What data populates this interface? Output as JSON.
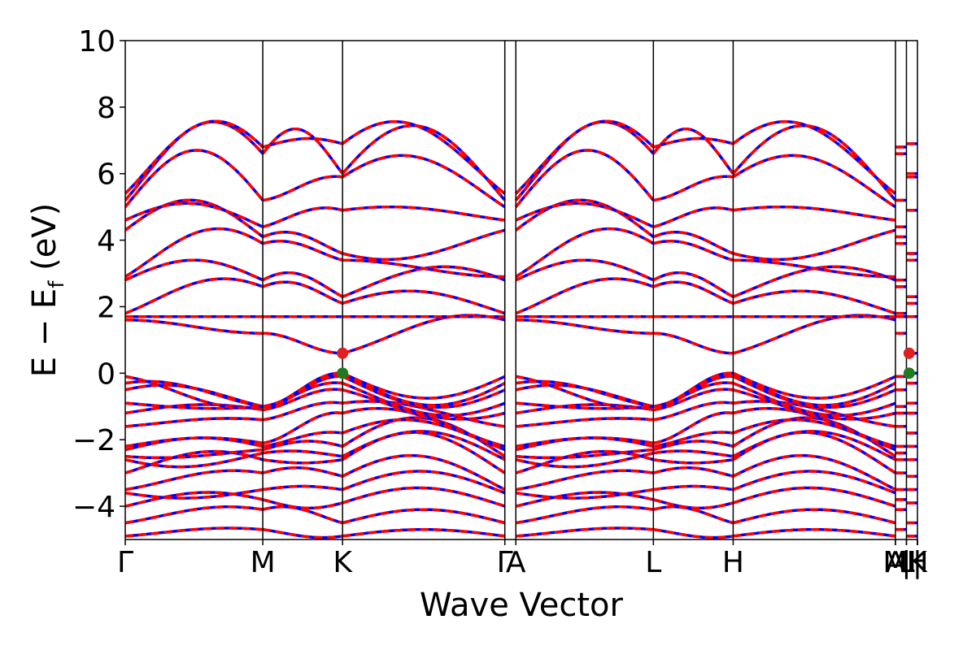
{
  "chart_data": {
    "type": "line",
    "xlabel": "Wave Vector",
    "ylabel": "E − E",
    "ylabel_sub": "f",
    "ylabel_unit": " (eV)",
    "ylim": [
      -5,
      10
    ],
    "yticks": [
      -4,
      -2,
      0,
      2,
      4,
      6,
      8,
      10
    ],
    "ytick_labels": [
      "−4",
      "−2",
      "0",
      "2",
      "4",
      "6",
      "8",
      "10"
    ],
    "xlim": [
      0,
      5.76
    ],
    "kpoints": [
      {
        "label": "Γ",
        "x": 0.0
      },
      {
        "label": "M",
        "x": 1.0
      },
      {
        "label": "K",
        "x": 1.58
      },
      {
        "label": "Γ",
        "x": 2.76
      },
      {
        "label": "A",
        "x": 2.84
      },
      {
        "label": "L",
        "x": 3.84
      },
      {
        "label": "H",
        "x": 4.42
      },
      {
        "label": "A",
        "x": 5.6
      },
      {
        "label": "M",
        "x": 5.6
      },
      {
        "label": "|",
        "x": 5.68
      },
      {
        "label": "L",
        "x": 5.68
      },
      {
        "label": "H",
        "x": 5.76
      },
      {
        "label": "|",
        "x": 5.76
      },
      {
        "label": "K",
        "x": 5.76
      }
    ],
    "band_segments": [
      {
        "from": "Γ",
        "to": "M",
        "x0": 0.0,
        "x1": 1.0,
        "start": [
          -4.9,
          -4.5,
          -4.0,
          -3.6,
          -3.5,
          -3.0,
          -2.6,
          -2.5,
          -2.3,
          -2.2,
          -1.6,
          -1.2,
          -0.9,
          -0.5,
          -0.3,
          -0.1,
          1.6,
          1.7,
          1.8,
          2.8,
          2.9,
          4.3,
          4.6,
          5.0,
          5.2,
          5.4
        ],
        "end": [
          -4.7,
          -4.1,
          -3.8,
          -3.5,
          -3.0,
          -2.6,
          -2.4,
          -2.3,
          -2.2,
          -2.1,
          -1.4,
          -1.1,
          -1.0,
          -1.0,
          -1.0,
          -1.0,
          1.2,
          1.7,
          2.6,
          2.8,
          3.9,
          4.1,
          4.4,
          5.2,
          6.6,
          6.8
        ],
        "bump": [
          0.1,
          0.2,
          0.3,
          -0.2,
          0.2,
          0.4,
          -0.3,
          -0.1,
          0.3,
          0.2,
          0.1,
          0.2,
          -0.1,
          0.3,
          0.2,
          -0.2,
          0.0,
          0.0,
          0.5,
          0.6,
          0.8,
          1.0,
          0.6,
          1.6,
          1.5,
          1.3
        ]
      },
      {
        "from": "M",
        "to": "K",
        "x0": 1.0,
        "x1": 1.58,
        "start": [
          -4.7,
          -4.1,
          -3.8,
          -3.5,
          -3.0,
          -2.6,
          -2.4,
          -2.3,
          -2.2,
          -2.1,
          -1.4,
          -1.1,
          -1.0,
          -1.0,
          -1.0,
          -1.0,
          1.2,
          1.7,
          2.6,
          2.8,
          3.9,
          4.1,
          4.4,
          5.2,
          6.6,
          6.8
        ],
        "end": [
          -4.9,
          -4.5,
          -3.9,
          -3.5,
          -3.1,
          -2.6,
          -2.5,
          -2.2,
          -1.8,
          -1.2,
          -0.9,
          -0.5,
          -0.3,
          -0.1,
          0.0,
          0.0,
          0.6,
          1.7,
          2.1,
          2.3,
          3.4,
          3.6,
          4.9,
          5.9,
          6.0,
          6.9
        ],
        "bump": [
          -0.1,
          0.2,
          -0.2,
          0.1,
          0.2,
          -0.1,
          0.1,
          0.2,
          0.1,
          0.1,
          0.1,
          0.1,
          0.1,
          0.05,
          0.05,
          0.0,
          0.0,
          0.0,
          0.3,
          0.4,
          0.2,
          0.3,
          0.2,
          0.1,
          1.0,
          0.2
        ]
      },
      {
        "from": "K",
        "to": "Γ",
        "x0": 1.58,
        "x1": 2.76,
        "start": [
          -4.9,
          -4.5,
          -3.9,
          -3.5,
          -3.1,
          -2.6,
          -2.5,
          -2.2,
          -1.8,
          -1.2,
          -0.9,
          -0.5,
          -0.3,
          -0.1,
          0.0,
          0.0,
          0.6,
          1.7,
          2.1,
          2.3,
          3.4,
          3.6,
          4.9,
          5.9,
          6.0,
          6.9
        ],
        "end": [
          -4.9,
          -4.5,
          -4.0,
          -3.6,
          -3.5,
          -3.0,
          -2.6,
          -2.5,
          -2.3,
          -2.2,
          -1.6,
          -1.2,
          -0.9,
          -0.5,
          -0.3,
          -0.1,
          1.6,
          1.7,
          1.8,
          2.8,
          2.9,
          4.3,
          4.6,
          5.0,
          5.2,
          5.4
        ],
        "bump": [
          0.2,
          0.4,
          0.5,
          0.6,
          0.8,
          1.0,
          0.8,
          1.0,
          0.6,
          0.4,
          0.2,
          -0.4,
          -0.6,
          -0.7,
          -0.8,
          -0.7,
          0.4,
          0.0,
          0.5,
          0.6,
          0.0,
          -0.4,
          0.2,
          1.0,
          1.8,
          1.2
        ]
      },
      {
        "from": "A",
        "to": "L",
        "x0": 2.84,
        "x1": 3.84,
        "start": [
          -4.9,
          -4.5,
          -4.0,
          -3.6,
          -3.5,
          -3.0,
          -2.6,
          -2.5,
          -2.3,
          -2.2,
          -1.6,
          -1.2,
          -0.9,
          -0.5,
          -0.3,
          -0.1,
          1.6,
          1.7,
          1.8,
          2.8,
          2.9,
          4.3,
          4.6,
          5.0,
          5.2,
          5.4
        ],
        "end": [
          -4.7,
          -4.1,
          -3.8,
          -3.5,
          -3.0,
          -2.6,
          -2.4,
          -2.3,
          -2.2,
          -2.1,
          -1.4,
          -1.1,
          -1.0,
          -1.0,
          -1.0,
          -1.0,
          1.2,
          1.7,
          2.6,
          2.8,
          3.9,
          4.1,
          4.4,
          5.2,
          6.6,
          6.8
        ],
        "bump": [
          0.1,
          0.2,
          0.3,
          -0.2,
          0.2,
          0.4,
          -0.3,
          -0.1,
          0.3,
          0.2,
          0.1,
          0.2,
          -0.1,
          0.3,
          0.2,
          -0.2,
          0.0,
          0.0,
          0.5,
          0.6,
          0.8,
          1.0,
          0.6,
          1.6,
          1.5,
          1.3
        ]
      },
      {
        "from": "L",
        "to": "H",
        "x0": 3.84,
        "x1": 4.42,
        "start": [
          -4.7,
          -4.1,
          -3.8,
          -3.5,
          -3.0,
          -2.6,
          -2.4,
          -2.3,
          -2.2,
          -2.1,
          -1.4,
          -1.1,
          -1.0,
          -1.0,
          -1.0,
          -1.0,
          1.2,
          1.7,
          2.6,
          2.8,
          3.9,
          4.1,
          4.4,
          5.2,
          6.6,
          6.8
        ],
        "end": [
          -4.9,
          -4.5,
          -3.9,
          -3.5,
          -3.1,
          -2.6,
          -2.5,
          -2.2,
          -1.8,
          -1.2,
          -0.9,
          -0.5,
          -0.3,
          -0.1,
          0.0,
          0.0,
          0.6,
          1.7,
          2.1,
          2.3,
          3.4,
          3.6,
          4.9,
          5.9,
          6.0,
          6.9
        ],
        "bump": [
          -0.1,
          0.2,
          -0.2,
          0.1,
          0.2,
          -0.1,
          0.1,
          0.2,
          0.1,
          0.1,
          0.1,
          0.1,
          0.1,
          0.05,
          0.05,
          0.0,
          0.0,
          0.0,
          0.3,
          0.4,
          0.2,
          0.3,
          0.2,
          0.1,
          1.0,
          0.2
        ]
      },
      {
        "from": "H",
        "to": "A",
        "x0": 4.42,
        "x1": 5.6,
        "start": [
          -4.9,
          -4.5,
          -3.9,
          -3.5,
          -3.1,
          -2.6,
          -2.5,
          -2.2,
          -1.8,
          -1.2,
          -0.9,
          -0.5,
          -0.3,
          -0.1,
          0.0,
          0.0,
          0.6,
          1.7,
          2.1,
          2.3,
          3.4,
          3.6,
          4.9,
          5.9,
          6.0,
          6.9
        ],
        "end": [
          -4.9,
          -4.5,
          -4.0,
          -3.6,
          -3.5,
          -3.0,
          -2.6,
          -2.5,
          -2.3,
          -2.2,
          -1.6,
          -1.2,
          -0.9,
          -0.5,
          -0.3,
          -0.1,
          1.6,
          1.7,
          1.8,
          2.8,
          2.9,
          4.3,
          4.6,
          5.0,
          5.2,
          5.4
        ],
        "bump": [
          0.2,
          0.4,
          0.5,
          0.6,
          0.8,
          1.0,
          0.8,
          1.0,
          0.6,
          0.4,
          0.2,
          -0.4,
          -0.6,
          -0.7,
          -0.8,
          -0.7,
          0.4,
          0.0,
          0.5,
          0.6,
          0.0,
          -0.4,
          0.2,
          1.0,
          1.8,
          1.2
        ]
      }
    ],
    "flat_segments": [
      {
        "x0": 5.6,
        "x1": 5.68,
        "values": [
          -4.7,
          -4.1,
          -3.8,
          -3.5,
          -3.0,
          -2.6,
          -2.4,
          -2.2,
          -1.6,
          -1.2,
          -1.0,
          -0.5,
          -0.1,
          1.2,
          1.7,
          1.8,
          2.6,
          2.8,
          3.9,
          4.1,
          4.4,
          5.2,
          6.6,
          6.8
        ]
      },
      {
        "x0": 5.68,
        "x1": 5.76,
        "values": [
          -4.9,
          -4.5,
          -3.9,
          -3.5,
          -3.1,
          -2.6,
          -2.2,
          -1.8,
          -1.2,
          -0.9,
          -0.3,
          0.0,
          0.6,
          1.7,
          2.1,
          2.3,
          3.4,
          3.6,
          4.9,
          5.9,
          6.0,
          6.9
        ]
      }
    ],
    "markers": [
      {
        "name": "CBM",
        "x": 1.58,
        "y": 0.6,
        "color": "#e02020"
      },
      {
        "name": "VBM",
        "x": 1.58,
        "y": 0.0,
        "color": "#1e7b1e"
      },
      {
        "name": "CBM",
        "x": 5.7,
        "y": 0.6,
        "color": "#e02020"
      },
      {
        "name": "VBM",
        "x": 5.7,
        "y": 0.0,
        "color": "#1e7b1e"
      }
    ],
    "colors": {
      "band_solid": "#0000ff",
      "band_dashed": "#ff0000",
      "grid_lines": "#000000"
    },
    "grid": false,
    "legend": "none"
  }
}
